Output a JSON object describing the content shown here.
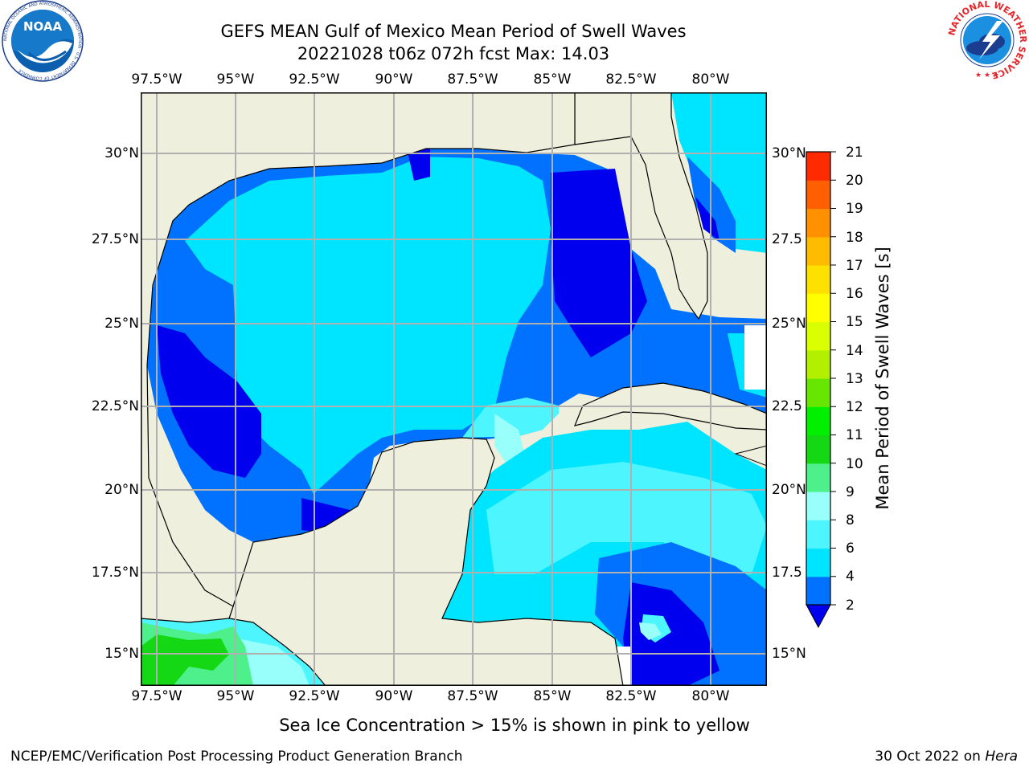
{
  "title": {
    "line1": "GEFS MEAN Gulf of Mexico Mean Period of Swell Waves",
    "line2": "20221028 t06z 072h fcst   Max: 14.03"
  },
  "map": {
    "lon_ticks": [
      "97.5°W",
      "95°W",
      "92.5°W",
      "90°W",
      "87.5°W",
      "85°W",
      "82.5°W",
      "80°W"
    ],
    "lat_ticks_left": [
      "30°N",
      "27.5°N",
      "25°N",
      "22.5°N",
      "20°N",
      "17.5°N",
      "15°N"
    ],
    "lat_ticks_right": [
      "30°N",
      "27.5",
      "25°N",
      "22.5",
      "20°N",
      "17.5",
      "15°N"
    ],
    "extent": {
      "lon_min": -98.0,
      "lon_max": -78.2,
      "lat_min": 14.0,
      "lat_max": 31.6
    },
    "colors": {
      "land": "#efefde",
      "coast": "#000000",
      "grid": "#b0b0b0"
    }
  },
  "colorbar": {
    "label": "Mean Period of Swell Waves [s]",
    "tick_labels": [
      "2",
      "4",
      "6",
      "8",
      "9",
      "10",
      "11",
      "12",
      "13",
      "14",
      "15",
      "16",
      "17",
      "18",
      "19",
      "20",
      "21"
    ],
    "colors": [
      "#0072ff",
      "#00e5ff",
      "#4df5ff",
      "#99fffa",
      "#4df08a",
      "#14d814",
      "#00f000",
      "#66e600",
      "#b3f000",
      "#d9ff00",
      "#ffff00",
      "#ffe100",
      "#ffbb00",
      "#ff9000",
      "#ff5f00",
      "#ff2a00"
    ],
    "under_color": "#0000ee"
  },
  "caption": "Sea Ice Concentration > 15% is shown in pink to yellow",
  "footer": {
    "left": "NCEP/EMC/Verification Post Processing Product Generation Branch",
    "right_date": "30 Oct 2022 on ",
    "right_machine": "Hera"
  },
  "logos": {
    "noaa_text": "NOAA",
    "noaa_ring": "NATIONAL OCEANIC AND ATMOSPHERIC ADMINISTRATION · U.S. DEPARTMENT OF COMMERCE",
    "nws_ring": "NATIONAL WEATHER SERVICE"
  }
}
